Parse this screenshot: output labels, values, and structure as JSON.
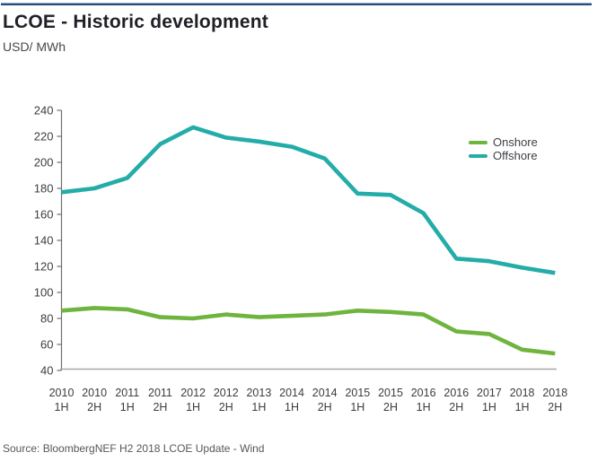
{
  "header": {
    "title": "LCOE - Historic development",
    "subtitle": "USD/ MWh"
  },
  "footer": {
    "source": "Source: BloombergNEF H2 2018 LCOE Update - Wind"
  },
  "colors": {
    "top_rule": "#27507e",
    "y_axis": "#6e6e6e",
    "x_baseline": "#a8a8a8",
    "tick_text": "#3d3d42"
  },
  "chart_data": {
    "type": "line",
    "title": "LCOE - Historic development",
    "ylabel": "USD/ MWh",
    "xlabel": "",
    "ylim": [
      40,
      240
    ],
    "ytick_step": 20,
    "yticks": [
      240,
      220,
      200,
      180,
      160,
      140,
      120,
      100,
      80,
      60,
      40
    ],
    "grid": false,
    "legend_position": "right-upper",
    "categories": [
      "2010 1H",
      "2010 2H",
      "2011 1H",
      "2011 2H",
      "2012 1H",
      "2012 2H",
      "2013 1H",
      "2014 1H",
      "2014 2H",
      "2015 1H",
      "2015 2H",
      "2016 1H",
      "2016 2H",
      "2017 1H",
      "2018 1H",
      "2018 2H"
    ],
    "series": [
      {
        "name": "Onshore",
        "color": "#6eb43e",
        "values": [
          86,
          88,
          87,
          81,
          80,
          83,
          81,
          82,
          83,
          86,
          85,
          83,
          70,
          68,
          56,
          53
        ]
      },
      {
        "name": "Offshore",
        "color": "#23aca8",
        "values": [
          177,
          180,
          188,
          214,
          227,
          219,
          216,
          212,
          203,
          176,
          175,
          161,
          126,
          124,
          119,
          115
        ]
      }
    ]
  }
}
